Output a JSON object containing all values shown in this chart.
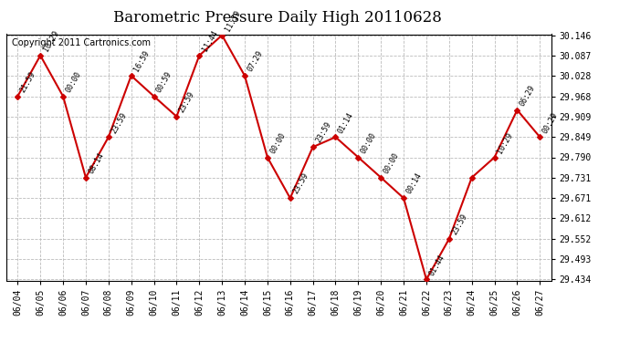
{
  "title": "Barometric Pressure Daily High 20110628",
  "copyright": "Copyright 2011 Cartronics.com",
  "x_labels": [
    "06/04",
    "06/05",
    "06/06",
    "06/07",
    "06/08",
    "06/09",
    "06/10",
    "06/11",
    "06/12",
    "06/13",
    "06/14",
    "06/15",
    "06/16",
    "06/17",
    "06/18",
    "06/19",
    "06/20",
    "06/21",
    "06/22",
    "06/23",
    "06/24",
    "06/25",
    "06/26",
    "06/27"
  ],
  "y_values": [
    29.968,
    30.087,
    29.968,
    29.731,
    29.849,
    30.028,
    29.968,
    29.909,
    30.087,
    30.146,
    30.028,
    29.79,
    29.671,
    29.82,
    29.849,
    29.79,
    29.731,
    29.671,
    29.434,
    29.552,
    29.731,
    29.79,
    29.928,
    29.849
  ],
  "point_labels": [
    "21:59",
    "10:29",
    "00:00",
    "08:14",
    "23:59",
    "16:59",
    "00:59",
    "23:59",
    "11:44",
    "11:59",
    "07:29",
    "00:00",
    "23:59",
    "23:59",
    "01:14",
    "00:00",
    "00:00",
    "00:14",
    "01:44",
    "23:59",
    "",
    "10:29",
    "06:29",
    "00:29"
  ],
  "y_min": 29.434,
  "y_max": 30.146,
  "y_ticks": [
    29.434,
    29.493,
    29.552,
    29.612,
    29.671,
    29.731,
    29.79,
    29.849,
    29.909,
    29.968,
    30.028,
    30.087,
    30.146
  ],
  "line_color": "#cc0000",
  "marker_color": "#cc0000",
  "grid_color": "#bbbbbb",
  "bg_color": "#ffffff",
  "title_fontsize": 12,
  "copyright_fontsize": 7
}
